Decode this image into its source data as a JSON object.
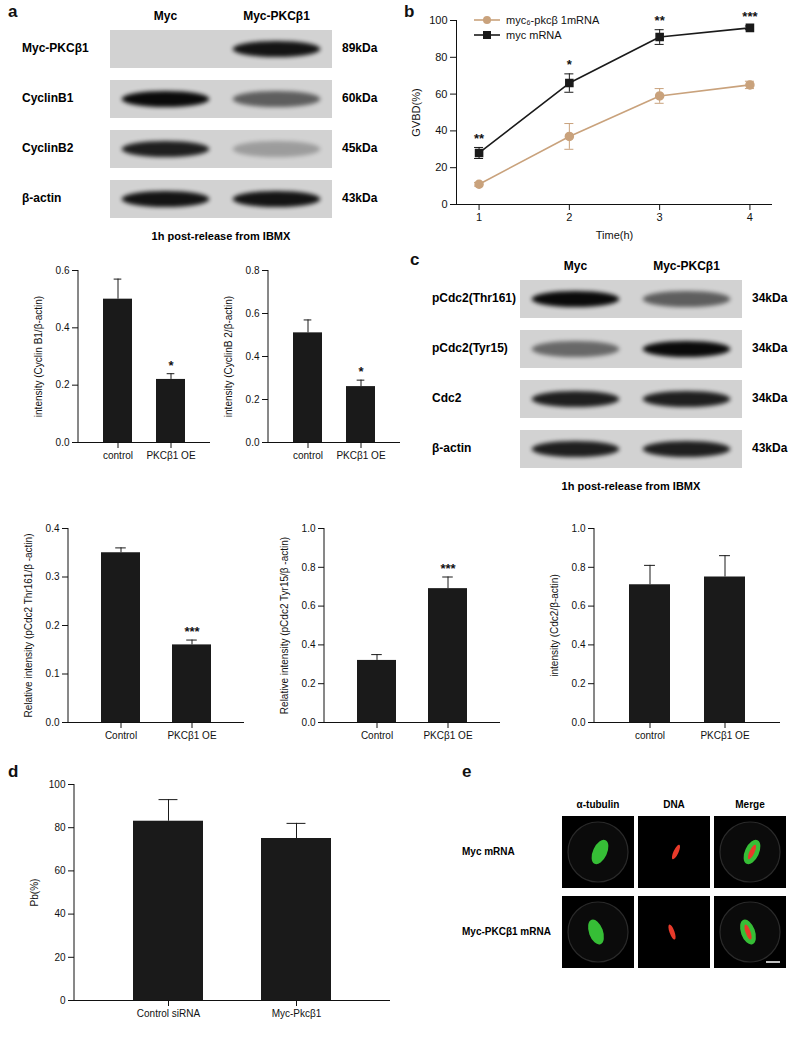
{
  "panel_letters": [
    "a",
    "b",
    "c",
    "d",
    "e"
  ],
  "chart_data": [
    {
      "type": "line",
      "xlabel": "Time(h)",
      "ylabel": "GVBD(%)",
      "x": [
        1,
        2,
        3,
        4
      ],
      "xlim": [
        0.75,
        4.25
      ],
      "xticks": [
        1,
        2,
        3,
        4
      ],
      "ylim": [
        0,
        100
      ],
      "yticks": [
        0,
        20,
        40,
        60,
        80,
        100
      ],
      "legend": "top-left",
      "series": [
        {
          "name": "myc₆-pkcβ 1mRNA",
          "color": "#c9a27c",
          "marker": "circle",
          "line_style": "solid",
          "values": [
            11,
            37,
            59,
            65
          ],
          "errors": [
            1,
            7,
            4,
            2
          ]
        },
        {
          "name": "myc mRNA",
          "color": "#1a1a1a",
          "marker": "square",
          "line_style": "solid",
          "values": [
            28,
            66,
            91,
            96
          ],
          "errors": [
            3,
            5,
            4,
            1
          ]
        }
      ],
      "annotations": [
        "**",
        "*",
        "**",
        "***"
      ]
    },
    {
      "type": "bar",
      "ylabel": "intensity (Cyclin B1/β-actin)",
      "categories": [
        "control",
        "PKCβ1 OE"
      ],
      "values": [
        0.5,
        0.22
      ],
      "errors": [
        0.07,
        0.02
      ],
      "significance": [
        null,
        "*"
      ],
      "color": "#1a1a1a",
      "ylim": [
        0,
        0.6
      ],
      "yticks": [
        {
          "value": 0,
          "label": "0.0"
        },
        0.2,
        0.4,
        0.6
      ]
    },
    {
      "type": "bar",
      "ylabel": "intensity (CyclinB 2/β-actin)",
      "categories": [
        "control",
        "PKCβ1 OE"
      ],
      "values": [
        0.51,
        0.26
      ],
      "errors": [
        0.06,
        0.03
      ],
      "significance": [
        null,
        "*"
      ],
      "color": "#1a1a1a",
      "ylim": [
        0,
        0.8
      ],
      "yticks": [
        {
          "value": 0,
          "label": "0.0"
        },
        0.2,
        0.4,
        0.6,
        0.8
      ]
    },
    {
      "type": "bar",
      "ylabel": "Relative intensity (pCdc2 Thr161/β -actin)",
      "categories": [
        "Control",
        "PKCβ1 OE"
      ],
      "values": [
        0.35,
        0.16
      ],
      "errors": [
        0.01,
        0.01
      ],
      "significance": [
        null,
        "***"
      ],
      "color": "#1a1a1a",
      "ylim": [
        0,
        0.4
      ],
      "yticks": [
        {
          "value": 0,
          "label": "0.0"
        },
        0.1,
        0.2,
        0.3,
        0.4
      ]
    },
    {
      "type": "bar",
      "ylabel": "Relative intensity (pCdc2 Tyr15/β -actin)",
      "categories": [
        "Control",
        "PKCβ1 OE"
      ],
      "values": [
        0.32,
        0.69
      ],
      "errors": [
        0.03,
        0.06
      ],
      "significance": [
        null,
        "***"
      ],
      "color": "#1a1a1a",
      "ylim": [
        0,
        1
      ],
      "yticks": [
        {
          "value": 0,
          "label": "0.0"
        },
        0.2,
        0.4,
        0.6,
        0.8,
        {
          "value": 1,
          "label": "1.0"
        }
      ]
    },
    {
      "type": "bar",
      "ylabel": "intensity (Cdc2/β-actin)",
      "categories": [
        "control",
        "PKCβ1 OE"
      ],
      "values": [
        0.71,
        0.75
      ],
      "errors": [
        0.1,
        0.11
      ],
      "color": "#1a1a1a",
      "ylim": [
        0,
        1
      ],
      "yticks": [
        {
          "value": 0,
          "label": "0.0"
        },
        0.2,
        0.4,
        0.6,
        0.8,
        {
          "value": 1,
          "label": "1.0"
        }
      ]
    },
    {
      "type": "bar",
      "ylabel": "Pb(%)",
      "categories": [
        "Control siRNA",
        "Myc-Pkcβ1"
      ],
      "values": [
        83,
        75
      ],
      "errors": [
        10,
        7
      ],
      "color": "#1a1a1a",
      "ylim": [
        0,
        100
      ],
      "yticks": [
        0,
        20,
        40,
        60,
        80,
        100
      ]
    }
  ],
  "blots": [
    {
      "lanes": [
        "Myc",
        "Myc-PKCβ1"
      ],
      "caption": "1h post-release from IBMX",
      "rows": [
        {
          "label": "Myc-PKCβ1",
          "kda": "89kDa",
          "band_intensity": [
            0,
            0.9
          ]
        },
        {
          "label": "CyclinB1",
          "kda": "60kDa",
          "band_intensity": [
            0.95,
            0.55
          ]
        },
        {
          "label": "CyclinB2",
          "kda": "45kDa",
          "band_intensity": [
            0.85,
            0.25
          ]
        },
        {
          "label": "β-actin",
          "kda": "43kDa",
          "band_intensity": [
            0.9,
            0.9
          ]
        }
      ]
    },
    {
      "lanes": [
        "Myc",
        "Myc-PKCβ1"
      ],
      "caption": "1h post-release from IBMX",
      "rows": [
        {
          "label": "pCdc2(Thr161)",
          "kda": "34kDa",
          "band_intensity": [
            0.95,
            0.55
          ]
        },
        {
          "label": "pCdc2(Tyr15)",
          "kda": "34kDa",
          "band_intensity": [
            0.5,
            0.95
          ]
        },
        {
          "label": "Cdc2",
          "kda": "34kDa",
          "band_intensity": [
            0.85,
            0.85
          ]
        },
        {
          "label": "β-actin",
          "kda": "43kDa",
          "band_intensity": [
            0.85,
            0.85
          ]
        }
      ]
    }
  ],
  "images": {
    "columns": [
      "α-tubulin",
      "DNA",
      "Merge"
    ],
    "rows": [
      "Myc mRNA",
      "Myc-PKCβ1 mRNA"
    ]
  }
}
